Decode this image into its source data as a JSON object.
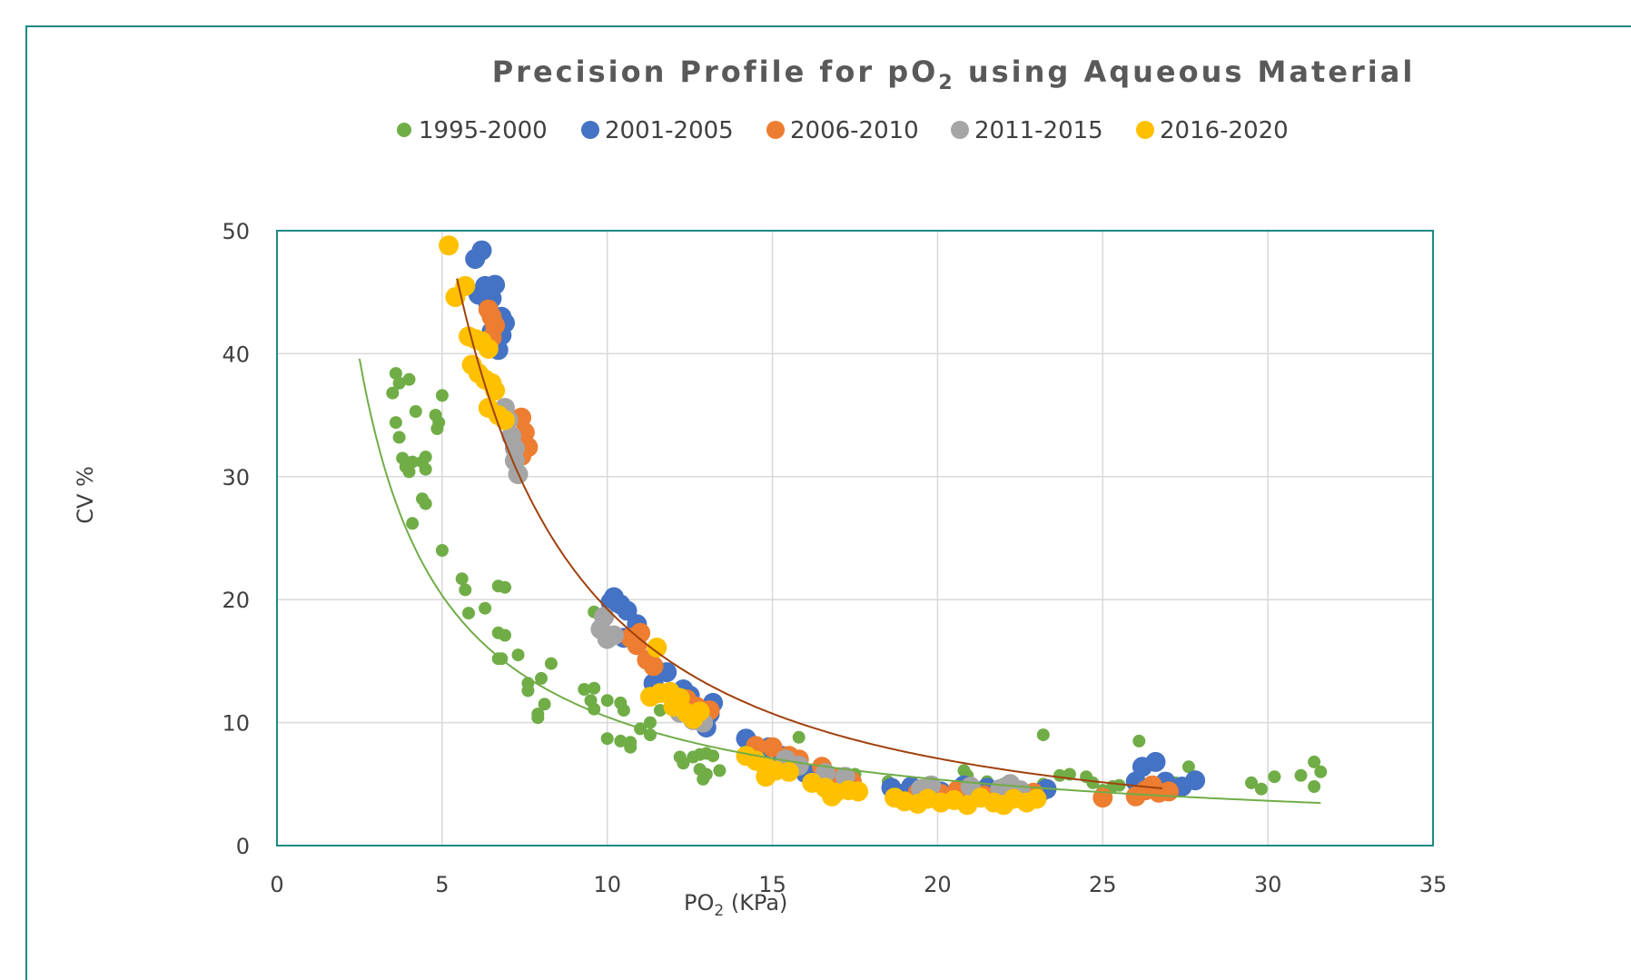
{
  "chart_data": {
    "type": "scatter",
    "title": "Precision Profile for pO",
    "title_subscript": "2",
    "title_suffix": " using Aqueous Material",
    "xlabel": "PO",
    "xlabel_subscript": "2",
    "xlabel_suffix": " (KPa)",
    "ylabel": "CV %",
    "xlim": [
      0,
      35
    ],
    "ylim": [
      0,
      50
    ],
    "x_ticks": [
      "0",
      "5",
      "10",
      "15",
      "20",
      "25",
      "30",
      "35"
    ],
    "y_ticks": [
      "0",
      "10",
      "20",
      "30",
      "40",
      "50"
    ],
    "grid": true,
    "legend_position": "top",
    "series": [
      {
        "name": "1995-2000",
        "color": "#70ad47",
        "marker_size": "small",
        "points": [
          [
            3.5,
            36.8
          ],
          [
            3.6,
            38.4
          ],
          [
            3.7,
            37.6
          ],
          [
            3.6,
            34.4
          ],
          [
            3.7,
            33.2
          ],
          [
            3.8,
            31.5
          ],
          [
            3.9,
            30.8
          ],
          [
            4.0,
            30.4
          ],
          [
            4.1,
            31.2
          ],
          [
            4.0,
            37.9
          ],
          [
            4.2,
            35.3
          ],
          [
            4.4,
            31.2
          ],
          [
            4.5,
            31.6
          ],
          [
            4.5,
            30.6
          ],
          [
            4.4,
            28.2
          ],
          [
            4.5,
            27.8
          ],
          [
            4.8,
            35.0
          ],
          [
            4.9,
            34.4
          ],
          [
            4.85,
            33.9
          ],
          [
            5.0,
            36.6
          ],
          [
            4.1,
            26.2
          ],
          [
            5.0,
            24.0
          ],
          [
            5.6,
            21.7
          ],
          [
            5.7,
            20.8
          ],
          [
            6.3,
            19.3
          ],
          [
            5.8,
            18.9
          ],
          [
            6.7,
            21.1
          ],
          [
            6.9,
            21.0
          ],
          [
            6.7,
            17.3
          ],
          [
            6.9,
            17.1
          ],
          [
            6.7,
            15.2
          ],
          [
            6.8,
            15.2
          ],
          [
            7.3,
            15.5
          ],
          [
            7.6,
            13.2
          ],
          [
            7.6,
            12.6
          ],
          [
            8.0,
            13.6
          ],
          [
            8.3,
            14.8
          ],
          [
            8.1,
            11.5
          ],
          [
            7.9,
            10.7
          ],
          [
            7.9,
            10.4
          ],
          [
            9.3,
            12.7
          ],
          [
            9.6,
            12.8
          ],
          [
            9.5,
            11.8
          ],
          [
            9.6,
            11.1
          ],
          [
            10.0,
            11.8
          ],
          [
            10.4,
            11.6
          ],
          [
            10.5,
            11.0
          ],
          [
            10.0,
            8.7
          ],
          [
            10.4,
            8.5
          ],
          [
            10.7,
            8.0
          ],
          [
            10.7,
            8.4
          ],
          [
            11.0,
            9.5
          ],
          [
            11.3,
            9.0
          ],
          [
            11.3,
            10.0
          ],
          [
            11.6,
            11.0
          ],
          [
            9.6,
            19.0
          ],
          [
            12.2,
            7.2
          ],
          [
            12.3,
            6.7
          ],
          [
            12.6,
            7.2
          ],
          [
            12.8,
            7.4
          ],
          [
            13.0,
            7.5
          ],
          [
            13.2,
            7.3
          ],
          [
            12.8,
            6.2
          ],
          [
            13.0,
            5.8
          ],
          [
            12.9,
            5.4
          ],
          [
            13.4,
            6.1
          ],
          [
            14.2,
            7.3
          ],
          [
            15.8,
            8.8
          ],
          [
            15.5,
            7.4
          ],
          [
            16.5,
            6.0
          ],
          [
            17.5,
            5.8
          ],
          [
            18.5,
            5.2
          ],
          [
            20.8,
            6.1
          ],
          [
            20.9,
            5.7
          ],
          [
            21.5,
            5.2
          ],
          [
            22.0,
            5.0
          ],
          [
            23.2,
            5.0
          ],
          [
            23.2,
            9.0
          ],
          [
            23.7,
            5.7
          ],
          [
            24.0,
            5.8
          ],
          [
            24.5,
            5.6
          ],
          [
            24.7,
            5.1
          ],
          [
            25.0,
            4.5
          ],
          [
            25.3,
            4.8
          ],
          [
            25.5,
            4.9
          ],
          [
            26.1,
            8.5
          ],
          [
            26.5,
            5.0
          ],
          [
            27.2,
            5.1
          ],
          [
            27.6,
            6.4
          ],
          [
            27.8,
            5.6
          ],
          [
            29.5,
            5.1
          ],
          [
            29.8,
            4.6
          ],
          [
            30.2,
            5.6
          ],
          [
            31.0,
            5.7
          ],
          [
            31.4,
            4.8
          ],
          [
            31.4,
            6.8
          ],
          [
            31.6,
            6.0
          ],
          [
            27.0,
            4.6
          ]
        ]
      },
      {
        "name": "2001-2005",
        "color": "#4472c4",
        "marker_size": "large",
        "points": [
          [
            6.2,
            48.4
          ],
          [
            6.0,
            47.7
          ],
          [
            6.3,
            45.5
          ],
          [
            6.6,
            45.6
          ],
          [
            6.1,
            44.8
          ],
          [
            6.4,
            44.0
          ],
          [
            6.5,
            44.5
          ],
          [
            6.8,
            43.0
          ],
          [
            6.9,
            42.5
          ],
          [
            6.8,
            41.5
          ],
          [
            6.7,
            40.3
          ],
          [
            6.5,
            41.8
          ],
          [
            10.1,
            19.8
          ],
          [
            10.2,
            20.2
          ],
          [
            10.4,
            19.6
          ],
          [
            10.6,
            19.1
          ],
          [
            10.9,
            18.0
          ],
          [
            10.5,
            16.9
          ],
          [
            11.8,
            14.1
          ],
          [
            11.4,
            13.2
          ],
          [
            12.3,
            12.7
          ],
          [
            12.5,
            12.2
          ],
          [
            13.2,
            11.6
          ],
          [
            13.1,
            10.7
          ],
          [
            13.0,
            9.6
          ],
          [
            14.2,
            8.7
          ],
          [
            14.9,
            8.0
          ],
          [
            15.3,
            7.3
          ],
          [
            15.6,
            6.3
          ],
          [
            16.0,
            5.9
          ],
          [
            16.4,
            5.8
          ],
          [
            17.4,
            5.0
          ],
          [
            18.6,
            4.7
          ],
          [
            18.9,
            4.2
          ],
          [
            19.2,
            4.8
          ],
          [
            19.5,
            4.5
          ],
          [
            20.1,
            4.4
          ],
          [
            20.8,
            4.9
          ],
          [
            21.0,
            4.3
          ],
          [
            21.5,
            4.7
          ],
          [
            22.0,
            4.6
          ],
          [
            23.1,
            4.3
          ],
          [
            23.3,
            4.6
          ],
          [
            26.0,
            5.2
          ],
          [
            26.2,
            6.4
          ],
          [
            26.6,
            6.8
          ],
          [
            26.9,
            5.2
          ],
          [
            27.4,
            4.8
          ],
          [
            27.8,
            5.3
          ]
        ]
      },
      {
        "name": "2006-2010",
        "color": "#ed7d31",
        "marker_size": "large",
        "points": [
          [
            6.4,
            43.6
          ],
          [
            6.5,
            43.0
          ],
          [
            6.6,
            42.3
          ],
          [
            6.5,
            41.3
          ],
          [
            7.4,
            34.8
          ],
          [
            7.5,
            33.6
          ],
          [
            7.6,
            32.4
          ],
          [
            7.4,
            31.7
          ],
          [
            10.7,
            16.9
          ],
          [
            10.9,
            16.3
          ],
          [
            11.0,
            17.3
          ],
          [
            11.2,
            15.1
          ],
          [
            11.4,
            14.6
          ],
          [
            12.4,
            11.9
          ],
          [
            12.7,
            11.3
          ],
          [
            13.1,
            11.0
          ],
          [
            14.5,
            8.1
          ],
          [
            15.0,
            8.0
          ],
          [
            15.5,
            7.3
          ],
          [
            15.8,
            7.0
          ],
          [
            16.5,
            6.4
          ],
          [
            17.0,
            5.5
          ],
          [
            17.4,
            5.2
          ],
          [
            19.4,
            4.3
          ],
          [
            20.1,
            4.2
          ],
          [
            20.6,
            4.5
          ],
          [
            21.4,
            4.1
          ],
          [
            22.1,
            4.0
          ],
          [
            22.9,
            4.3
          ],
          [
            25.0,
            3.9
          ],
          [
            26.0,
            4.0
          ],
          [
            26.3,
            4.5
          ],
          [
            26.5,
            4.9
          ],
          [
            26.7,
            4.3
          ],
          [
            27.0,
            4.4
          ]
        ]
      },
      {
        "name": "2011-2015",
        "color": "#a5a5a5",
        "marker_size": "large",
        "points": [
          [
            6.9,
            35.6
          ],
          [
            7.0,
            34.6
          ],
          [
            7.1,
            33.3
          ],
          [
            7.2,
            32.3
          ],
          [
            7.2,
            31.3
          ],
          [
            7.3,
            30.2
          ],
          [
            9.9,
            18.6
          ],
          [
            9.8,
            17.6
          ],
          [
            10.0,
            16.8
          ],
          [
            10.2,
            17.1
          ],
          [
            12.2,
            10.8
          ],
          [
            12.6,
            10.2
          ],
          [
            12.9,
            10.0
          ],
          [
            15.4,
            7.0
          ],
          [
            15.8,
            6.5
          ],
          [
            16.6,
            5.9
          ],
          [
            17.2,
            5.6
          ],
          [
            19.5,
            4.6
          ],
          [
            19.8,
            4.9
          ],
          [
            21.0,
            4.8
          ],
          [
            21.9,
            4.6
          ],
          [
            22.2,
            5.0
          ],
          [
            22.5,
            4.5
          ]
        ]
      },
      {
        "name": "2016-2020",
        "color": "#ffc000",
        "marker_size": "large",
        "points": [
          [
            5.2,
            48.8
          ],
          [
            5.4,
            44.6
          ],
          [
            5.7,
            45.5
          ],
          [
            5.8,
            41.4
          ],
          [
            6.0,
            41.2
          ],
          [
            6.2,
            41.0
          ],
          [
            6.4,
            40.4
          ],
          [
            5.9,
            39.1
          ],
          [
            6.1,
            38.4
          ],
          [
            6.3,
            37.9
          ],
          [
            6.5,
            37.6
          ],
          [
            6.6,
            37.0
          ],
          [
            6.4,
            35.6
          ],
          [
            6.7,
            35.0
          ],
          [
            6.9,
            34.6
          ],
          [
            11.5,
            16.1
          ],
          [
            11.3,
            12.1
          ],
          [
            11.6,
            12.4
          ],
          [
            11.9,
            12.5
          ],
          [
            12.2,
            12.0
          ],
          [
            12.0,
            11.3
          ],
          [
            12.4,
            10.8
          ],
          [
            12.6,
            10.3
          ],
          [
            12.8,
            10.9
          ],
          [
            14.2,
            7.3
          ],
          [
            14.5,
            6.9
          ],
          [
            14.8,
            6.4
          ],
          [
            15.1,
            6.1
          ],
          [
            14.8,
            5.6
          ],
          [
            15.5,
            6.0
          ],
          [
            16.2,
            5.1
          ],
          [
            16.6,
            4.7
          ],
          [
            16.9,
            4.3
          ],
          [
            17.3,
            4.5
          ],
          [
            17.6,
            4.4
          ],
          [
            16.8,
            4.0
          ],
          [
            18.7,
            3.9
          ],
          [
            19.0,
            3.6
          ],
          [
            19.4,
            3.4
          ],
          [
            19.7,
            3.8
          ],
          [
            20.1,
            3.5
          ],
          [
            20.5,
            3.7
          ],
          [
            20.9,
            3.3
          ],
          [
            21.3,
            3.9
          ],
          [
            21.7,
            3.5
          ],
          [
            22.0,
            3.3
          ],
          [
            22.3,
            3.8
          ],
          [
            22.7,
            3.5
          ],
          [
            23.0,
            3.8
          ]
        ]
      }
    ],
    "trendlines": [
      {
        "series": "1995-2000",
        "color": "#70ad47",
        "type": "power",
        "coefficient": 95.4,
        "exponent": -0.96,
        "x_range": [
          2.5,
          31.6
        ]
      },
      {
        "series": "2001-2005",
        "color": "#a0410d",
        "type": "power",
        "coefficient": 530,
        "exponent": -1.44,
        "x_range": [
          5.45,
          26.8
        ]
      }
    ]
  }
}
